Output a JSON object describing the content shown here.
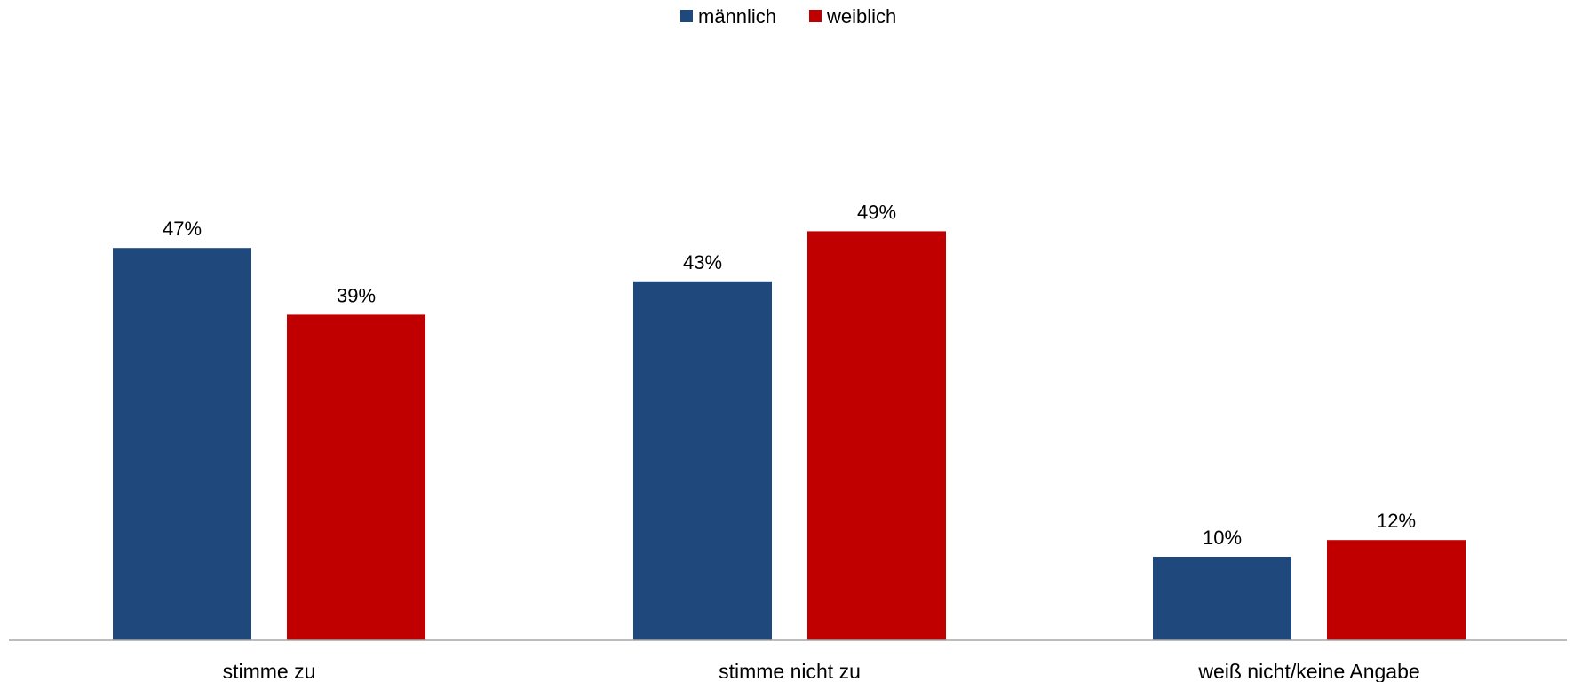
{
  "chart_data": {
    "type": "bar",
    "categories": [
      "stimme zu",
      "stimme nicht zu",
      "weiß nicht/keine Angabe"
    ],
    "series": [
      {
        "name": "männlich",
        "values": [
          47,
          43,
          10
        ],
        "labels": [
          "47%",
          "43%",
          "10%"
        ],
        "color": "#1F497D"
      },
      {
        "name": "weiblich",
        "values": [
          39,
          49,
          12
        ],
        "labels": [
          "39%",
          "49%",
          "12%"
        ],
        "color": "#C00000"
      }
    ],
    "title": "",
    "xlabel": "",
    "ylabel": "",
    "ylim": [
      0,
      54
    ],
    "unit": "%",
    "grid": false,
    "legend_position": "top-center",
    "axis_line_color": "#A6A6A6"
  }
}
